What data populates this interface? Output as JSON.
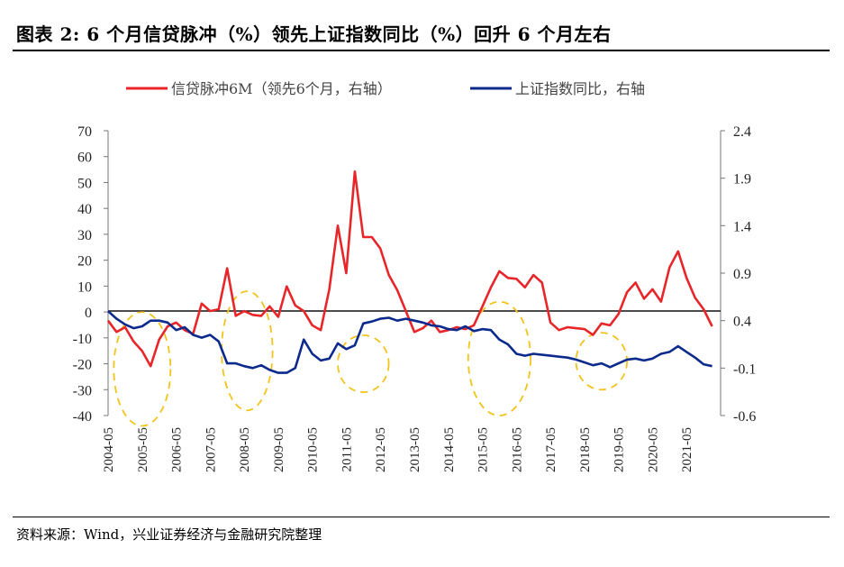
{
  "header": {
    "title": "图表 2:  6 个月信贷脉冲（%）领先上证指数同比（%）回升 6 个月左右"
  },
  "footer": {
    "source": "资料来源：Wind，兴业证券经济与金融研究院整理"
  },
  "colors": {
    "credit": "#e8262a",
    "index": "#0c2a8c",
    "ellipse": "#f2c31b"
  },
  "chart_data": {
    "type": "line",
    "title": "",
    "legend_position": "top",
    "x_labels": [
      "2004-05",
      "2005-05",
      "2006-05",
      "2007-05",
      "2008-05",
      "2009-05",
      "2010-05",
      "2011-05",
      "2012-05",
      "2013-05",
      "2014-05",
      "2015-05",
      "2016-05",
      "2017-05",
      "2018-05",
      "2019-05",
      "2020-05",
      "2021-05"
    ],
    "x_range": [
      "2004-05",
      "2022-05"
    ],
    "y_left": {
      "ticks": [
        "70",
        "60",
        "50",
        "40",
        "30",
        "20",
        "10",
        "0",
        "-10",
        "-20",
        "-30",
        "-40"
      ],
      "ylim": [
        -40,
        70
      ]
    },
    "y_right": {
      "ticks": [
        "2.4",
        "1.9",
        "1.4",
        "0.9",
        "0.4",
        "-0.1",
        "-0.6"
      ],
      "ylim": [
        -0.6,
        2.4
      ]
    },
    "series": [
      {
        "name": "信贷脉冲6M（领先6个月，右轴）",
        "axis": "right",
        "color": "#e8262a",
        "points": [
          [
            "2004-05",
            0.4
          ],
          [
            "2004-08",
            0.28
          ],
          [
            "2004-11",
            0.33
          ],
          [
            "2005-02",
            0.18
          ],
          [
            "2005-05",
            0.08
          ],
          [
            "2005-08",
            -0.08
          ],
          [
            "2005-11",
            0.2
          ],
          [
            "2006-02",
            0.34
          ],
          [
            "2006-05",
            0.38
          ],
          [
            "2006-08",
            0.3
          ],
          [
            "2006-11",
            0.26
          ],
          [
            "2007-02",
            0.58
          ],
          [
            "2007-05",
            0.5
          ],
          [
            "2007-08",
            0.52
          ],
          [
            "2007-11",
            0.95
          ],
          [
            "2008-02",
            0.45
          ],
          [
            "2008-05",
            0.5
          ],
          [
            "2008-08",
            0.46
          ],
          [
            "2008-11",
            0.45
          ],
          [
            "2009-02",
            0.55
          ],
          [
            "2009-05",
            0.44
          ],
          [
            "2009-08",
            0.76
          ],
          [
            "2009-11",
            0.56
          ],
          [
            "2010-02",
            0.5
          ],
          [
            "2010-05",
            0.35
          ],
          [
            "2010-08",
            0.3
          ],
          [
            "2010-11",
            0.73
          ],
          [
            "2011-02",
            1.4
          ],
          [
            "2011-05",
            0.9
          ],
          [
            "2011-08",
            1.97
          ],
          [
            "2011-11",
            1.28
          ],
          [
            "2012-02",
            1.28
          ],
          [
            "2012-05",
            1.16
          ],
          [
            "2012-08",
            0.88
          ],
          [
            "2012-11",
            0.72
          ],
          [
            "2013-02",
            0.5
          ],
          [
            "2013-05",
            0.28
          ],
          [
            "2013-08",
            0.32
          ],
          [
            "2013-11",
            0.4
          ],
          [
            "2014-02",
            0.28
          ],
          [
            "2014-05",
            0.3
          ],
          [
            "2014-08",
            0.33
          ],
          [
            "2014-11",
            0.31
          ],
          [
            "2015-02",
            0.35
          ],
          [
            "2015-05",
            0.55
          ],
          [
            "2015-08",
            0.75
          ],
          [
            "2015-11",
            0.92
          ],
          [
            "2016-02",
            0.85
          ],
          [
            "2016-05",
            0.84
          ],
          [
            "2016-08",
            0.75
          ],
          [
            "2016-11",
            0.88
          ],
          [
            "2017-02",
            0.8
          ],
          [
            "2017-05",
            0.38
          ],
          [
            "2017-08",
            0.3
          ],
          [
            "2017-11",
            0.33
          ],
          [
            "2018-02",
            0.32
          ],
          [
            "2018-05",
            0.31
          ],
          [
            "2018-08",
            0.25
          ],
          [
            "2018-11",
            0.37
          ],
          [
            "2019-02",
            0.35
          ],
          [
            "2019-05",
            0.47
          ],
          [
            "2019-08",
            0.7
          ],
          [
            "2019-11",
            0.8
          ],
          [
            "2020-02",
            0.63
          ],
          [
            "2020-05",
            0.73
          ],
          [
            "2020-08",
            0.6
          ],
          [
            "2020-11",
            0.96
          ],
          [
            "2021-02",
            1.13
          ],
          [
            "2021-05",
            0.85
          ],
          [
            "2021-08",
            0.64
          ],
          [
            "2021-11",
            0.52
          ],
          [
            "2022-02",
            0.34
          ]
        ]
      },
      {
        "name": "上证指数同比，右轴",
        "axis": "right",
        "color": "#0c2a8c",
        "points": [
          [
            "2004-05",
            0.5
          ],
          [
            "2004-08",
            0.42
          ],
          [
            "2004-11",
            0.36
          ],
          [
            "2005-02",
            0.32
          ],
          [
            "2005-05",
            0.34
          ],
          [
            "2005-08",
            0.4
          ],
          [
            "2005-11",
            0.4
          ],
          [
            "2006-02",
            0.38
          ],
          [
            "2006-05",
            0.3
          ],
          [
            "2006-08",
            0.33
          ],
          [
            "2006-11",
            0.25
          ],
          [
            "2007-02",
            0.22
          ],
          [
            "2007-05",
            0.25
          ],
          [
            "2007-08",
            0.18
          ],
          [
            "2007-11",
            -0.05
          ],
          [
            "2008-02",
            -0.05
          ],
          [
            "2008-05",
            -0.08
          ],
          [
            "2008-08",
            -0.1
          ],
          [
            "2008-11",
            -0.07
          ],
          [
            "2009-02",
            -0.12
          ],
          [
            "2009-05",
            -0.15
          ],
          [
            "2009-08",
            -0.15
          ],
          [
            "2009-11",
            -0.1
          ],
          [
            "2010-02",
            0.2
          ],
          [
            "2010-05",
            0.05
          ],
          [
            "2010-08",
            -0.02
          ],
          [
            "2010-11",
            0.0
          ],
          [
            "2011-02",
            0.16
          ],
          [
            "2011-05",
            0.1
          ],
          [
            "2011-08",
            0.14
          ],
          [
            "2011-11",
            0.37
          ],
          [
            "2012-02",
            0.39
          ],
          [
            "2012-05",
            0.42
          ],
          [
            "2012-08",
            0.43
          ],
          [
            "2012-11",
            0.4
          ],
          [
            "2013-02",
            0.42
          ],
          [
            "2013-05",
            0.4
          ],
          [
            "2013-08",
            0.38
          ],
          [
            "2013-11",
            0.35
          ],
          [
            "2014-02",
            0.34
          ],
          [
            "2014-05",
            0.31
          ],
          [
            "2014-08",
            0.3
          ],
          [
            "2014-11",
            0.34
          ],
          [
            "2015-02",
            0.29
          ],
          [
            "2015-05",
            0.31
          ],
          [
            "2015-08",
            0.3
          ],
          [
            "2015-11",
            0.2
          ],
          [
            "2016-02",
            0.15
          ],
          [
            "2016-05",
            0.05
          ],
          [
            "2016-08",
            0.03
          ],
          [
            "2016-11",
            0.05
          ],
          [
            "2017-02",
            0.04
          ],
          [
            "2017-05",
            0.03
          ],
          [
            "2017-08",
            0.02
          ],
          [
            "2017-11",
            0.01
          ],
          [
            "2018-02",
            -0.01
          ],
          [
            "2018-05",
            -0.04
          ],
          [
            "2018-08",
            -0.07
          ],
          [
            "2018-11",
            -0.05
          ],
          [
            "2019-02",
            -0.09
          ],
          [
            "2019-05",
            -0.05
          ],
          [
            "2019-08",
            -0.01
          ],
          [
            "2019-11",
            0.0
          ],
          [
            "2020-02",
            -0.02
          ],
          [
            "2020-05",
            0.0
          ],
          [
            "2020-08",
            0.05
          ],
          [
            "2020-11",
            0.07
          ],
          [
            "2021-02",
            0.13
          ],
          [
            "2021-05",
            0.07
          ],
          [
            "2021-08",
            0.01
          ],
          [
            "2021-11",
            -0.06
          ],
          [
            "2022-02",
            -0.08
          ]
        ]
      }
    ],
    "annotations": [
      {
        "type": "dashed-ellipse",
        "x_center": "2005-05",
        "y_center_left": -22,
        "x_half_span_months": 10,
        "y_half_span_left": 22
      },
      {
        "type": "dashed-ellipse",
        "x_center": "2008-06",
        "y_center_left": -15,
        "x_half_span_months": 9,
        "y_half_span_left": 23
      },
      {
        "type": "dashed-ellipse",
        "x_center": "2011-11",
        "y_center_left": -20,
        "x_half_span_months": 9,
        "y_half_span_left": 11
      },
      {
        "type": "dashed-ellipse",
        "x_center": "2015-11",
        "y_center_left": -18,
        "x_half_span_months": 11,
        "y_half_span_left": 22
      },
      {
        "type": "dashed-ellipse",
        "x_center": "2018-11",
        "y_center_left": -19,
        "x_half_span_months": 9,
        "y_half_span_left": 11
      }
    ]
  }
}
